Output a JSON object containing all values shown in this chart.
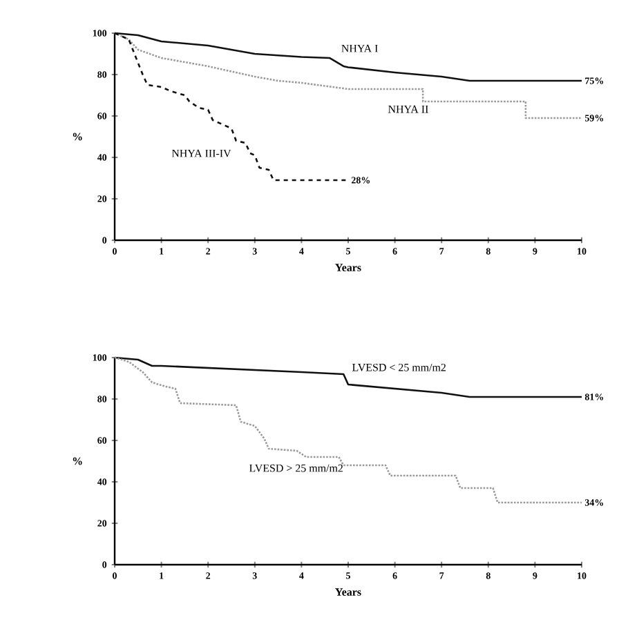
{
  "chart_data": [
    {
      "type": "line",
      "xlabel": "Years",
      "ylabel": "%",
      "xlim": [
        0,
        10
      ],
      "ylim": [
        0,
        100
      ],
      "xticks": [
        0,
        1,
        2,
        3,
        4,
        5,
        6,
        7,
        8,
        9,
        10
      ],
      "yticks": [
        0,
        20,
        40,
        60,
        80,
        100
      ],
      "grid": false,
      "legend": false,
      "marker": "none",
      "series": [
        {
          "name": "NHYA I",
          "color": "#111111",
          "line_style": "solid",
          "x": [
            0,
            0.5,
            1,
            2,
            3,
            4,
            4.6,
            4.9,
            5,
            6,
            7,
            7.6,
            10
          ],
          "values": [
            100,
            99,
            96,
            94,
            90,
            88.5,
            88,
            84,
            83.5,
            81,
            79,
            77,
            77
          ]
        },
        {
          "name": "NHYA II",
          "color": "#999999",
          "line_style": "dotted",
          "x": [
            0,
            0.3,
            0.5,
            1,
            2,
            3,
            3.5,
            4,
            5,
            6.6,
            6.6,
            8.8,
            8.8,
            10
          ],
          "values": [
            100,
            97,
            92,
            88,
            84,
            79,
            77,
            76,
            73,
            73,
            67,
            67,
            59,
            59
          ]
        },
        {
          "name": "NHYA III-IV",
          "color": "#111111",
          "line_style": "dashed",
          "x": [
            0,
            0.3,
            0.6,
            0.7,
            1,
            1.2,
            1.5,
            1.6,
            1.8,
            2,
            2.1,
            2.3,
            2.5,
            2.6,
            2.8,
            2.9,
            3,
            3.1,
            3.3,
            3.4,
            5
          ],
          "values": [
            100,
            97,
            80,
            75,
            74,
            72,
            70,
            67,
            64,
            63,
            58,
            56,
            54,
            48,
            47,
            42,
            41,
            35,
            34,
            29,
            29
          ]
        }
      ],
      "annotations": [
        "75%",
        "59%",
        "28%"
      ]
    },
    {
      "type": "line",
      "xlabel": "Years",
      "ylabel": "%",
      "xlim": [
        0,
        10
      ],
      "ylim": [
        0,
        100
      ],
      "xticks": [
        0,
        1,
        2,
        3,
        4,
        5,
        6,
        7,
        8,
        9,
        10
      ],
      "yticks": [
        0,
        20,
        40,
        60,
        80,
        100
      ],
      "grid": false,
      "legend": false,
      "marker": "none",
      "series": [
        {
          "name": "LVESD < 25 mm/m2",
          "color": "#111111",
          "line_style": "solid",
          "x": [
            0,
            0.5,
            0.8,
            1,
            2,
            3,
            4,
            4.9,
            5,
            6,
            7,
            7.6,
            10
          ],
          "values": [
            100,
            99,
            96,
            96,
            95,
            94,
            93,
            92,
            87,
            85,
            83,
            81,
            81
          ]
        },
        {
          "name": "LVESD > 25 mm/m2",
          "color": "#999999",
          "line_style": "dotted",
          "x": [
            0,
            0.3,
            0.6,
            0.8,
            1.1,
            1.3,
            1.4,
            2.6,
            2.7,
            3,
            3.2,
            3.3,
            3.9,
            4.1,
            4.8,
            4.9,
            5.8,
            5.9,
            7.3,
            7.4,
            8.1,
            8.2,
            10
          ],
          "values": [
            100,
            98,
            93,
            88,
            86,
            85,
            78,
            77,
            69,
            67,
            61,
            56,
            55,
            52,
            52,
            48,
            48,
            43,
            43,
            37,
            37,
            30,
            30
          ]
        }
      ],
      "annotations": [
        "81%",
        "34%"
      ]
    }
  ]
}
